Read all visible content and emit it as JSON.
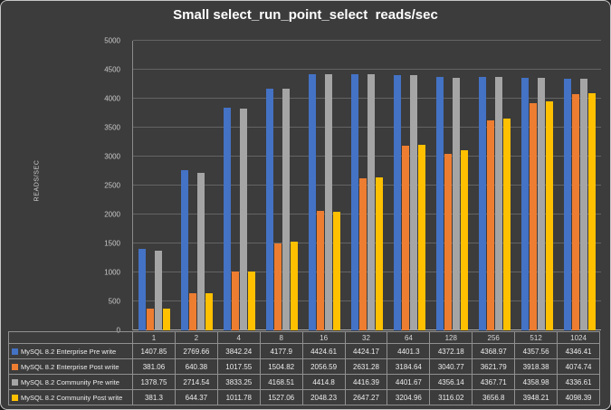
{
  "title": "Small select_run_point_select  reads/sec",
  "y_axis_label": "READS/SEC",
  "chart_data": {
    "type": "bar",
    "title": "Small select_run_point_select  reads/sec",
    "xlabel": "",
    "ylabel": "READS/SEC",
    "ylim": [
      0,
      5000
    ],
    "ytick_step": 500,
    "grid": true,
    "legend_position": "table-left",
    "categories": [
      "1",
      "2",
      "4",
      "8",
      "16",
      "32",
      "64",
      "128",
      "256",
      "512",
      "1024"
    ],
    "series": [
      {
        "name": "MySQL 8.2 Enterprise Pre write",
        "color": "#4472c4",
        "values": [
          1407.85,
          2769.66,
          3842.24,
          4177.9,
          4424.61,
          4424.17,
          4401.3,
          4372.18,
          4368.97,
          4357.56,
          4346.41
        ]
      },
      {
        "name": "MySQL 8.2 Enterprise Post write",
        "color": "#ed7d31",
        "values": [
          381.06,
          640.38,
          1017.55,
          1504.82,
          2056.59,
          2631.28,
          3184.64,
          3040.77,
          3621.79,
          3918.38,
          4074.74
        ]
      },
      {
        "name": "MySQL 8.2 Community Pre write",
        "color": "#a5a5a5",
        "values": [
          1378.75,
          2714.54,
          3833.25,
          4168.51,
          4414.8,
          4416.39,
          4401.67,
          4356.14,
          4367.71,
          4358.98,
          4336.61
        ]
      },
      {
        "name": "MySQL 8.2 Community Post write",
        "color": "#ffc000",
        "values": [
          381.3,
          644.37,
          1011.78,
          1527.06,
          2048.23,
          2647.27,
          3204.96,
          3116.02,
          3656.8,
          3948.21,
          4098.39
        ]
      }
    ]
  }
}
